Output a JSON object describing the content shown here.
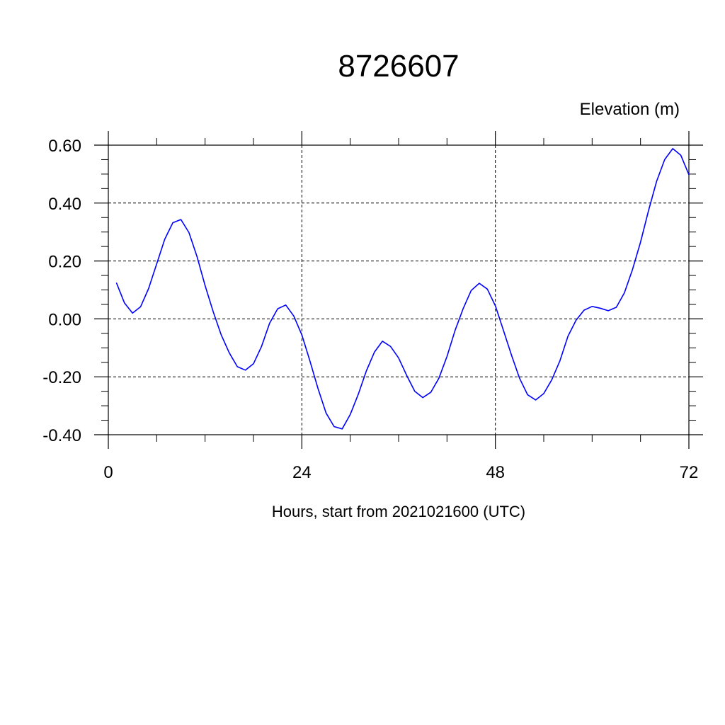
{
  "chart_data": {
    "type": "line",
    "title": "8726607",
    "units_label": "Elevation (m)",
    "xlabel": "Hours, start from 2021021600 (UTC)",
    "ylabel": "",
    "xlim": [
      0,
      72
    ],
    "ylim": [
      -0.4,
      0.6
    ],
    "xticks": [
      0,
      24,
      48,
      72
    ],
    "xtick_labels": [
      "0",
      "24",
      "48",
      "72"
    ],
    "yticks": [
      -0.4,
      -0.2,
      0.0,
      0.2,
      0.4,
      0.6
    ],
    "ytick_labels": [
      "-0.40",
      "-0.20",
      "0.00",
      "0.20",
      "0.40",
      "0.60"
    ],
    "grid": true,
    "line_color": "#0000ff",
    "series": [
      {
        "x": [
          1,
          2,
          3,
          4,
          5,
          6,
          7,
          8,
          9,
          10,
          11,
          12,
          13,
          14,
          15,
          16,
          17,
          18,
          19,
          20,
          21,
          22,
          23,
          24,
          25,
          26,
          27,
          28,
          29,
          30,
          31,
          32,
          33,
          34,
          35,
          36,
          37,
          38,
          39,
          40,
          41,
          42,
          43,
          44,
          45,
          46,
          47,
          48,
          49,
          50,
          51,
          52,
          53,
          54,
          55,
          56,
          57,
          58,
          59,
          60,
          61,
          62,
          63,
          64,
          65,
          66,
          67,
          68,
          69,
          70,
          71,
          72
        ],
        "values": [
          0.125,
          0.055,
          0.02,
          0.042,
          0.105,
          0.19,
          0.275,
          0.332,
          0.343,
          0.298,
          0.215,
          0.115,
          0.025,
          -0.055,
          -0.117,
          -0.165,
          -0.177,
          -0.155,
          -0.095,
          -0.015,
          0.035,
          0.048,
          0.01,
          -0.055,
          -0.145,
          -0.24,
          -0.325,
          -0.372,
          -0.38,
          -0.33,
          -0.26,
          -0.18,
          -0.115,
          -0.077,
          -0.095,
          -0.135,
          -0.195,
          -0.25,
          -0.272,
          -0.253,
          -0.205,
          -0.13,
          -0.04,
          0.035,
          0.098,
          0.123,
          0.103,
          0.045,
          -0.04,
          -0.125,
          -0.205,
          -0.262,
          -0.28,
          -0.258,
          -0.21,
          -0.145,
          -0.06,
          -0.005,
          0.03,
          0.043,
          0.037,
          0.028,
          0.04,
          0.09,
          0.17,
          0.265,
          0.375,
          0.475,
          0.55,
          0.588,
          0.565,
          0.498
        ]
      }
    ]
  }
}
